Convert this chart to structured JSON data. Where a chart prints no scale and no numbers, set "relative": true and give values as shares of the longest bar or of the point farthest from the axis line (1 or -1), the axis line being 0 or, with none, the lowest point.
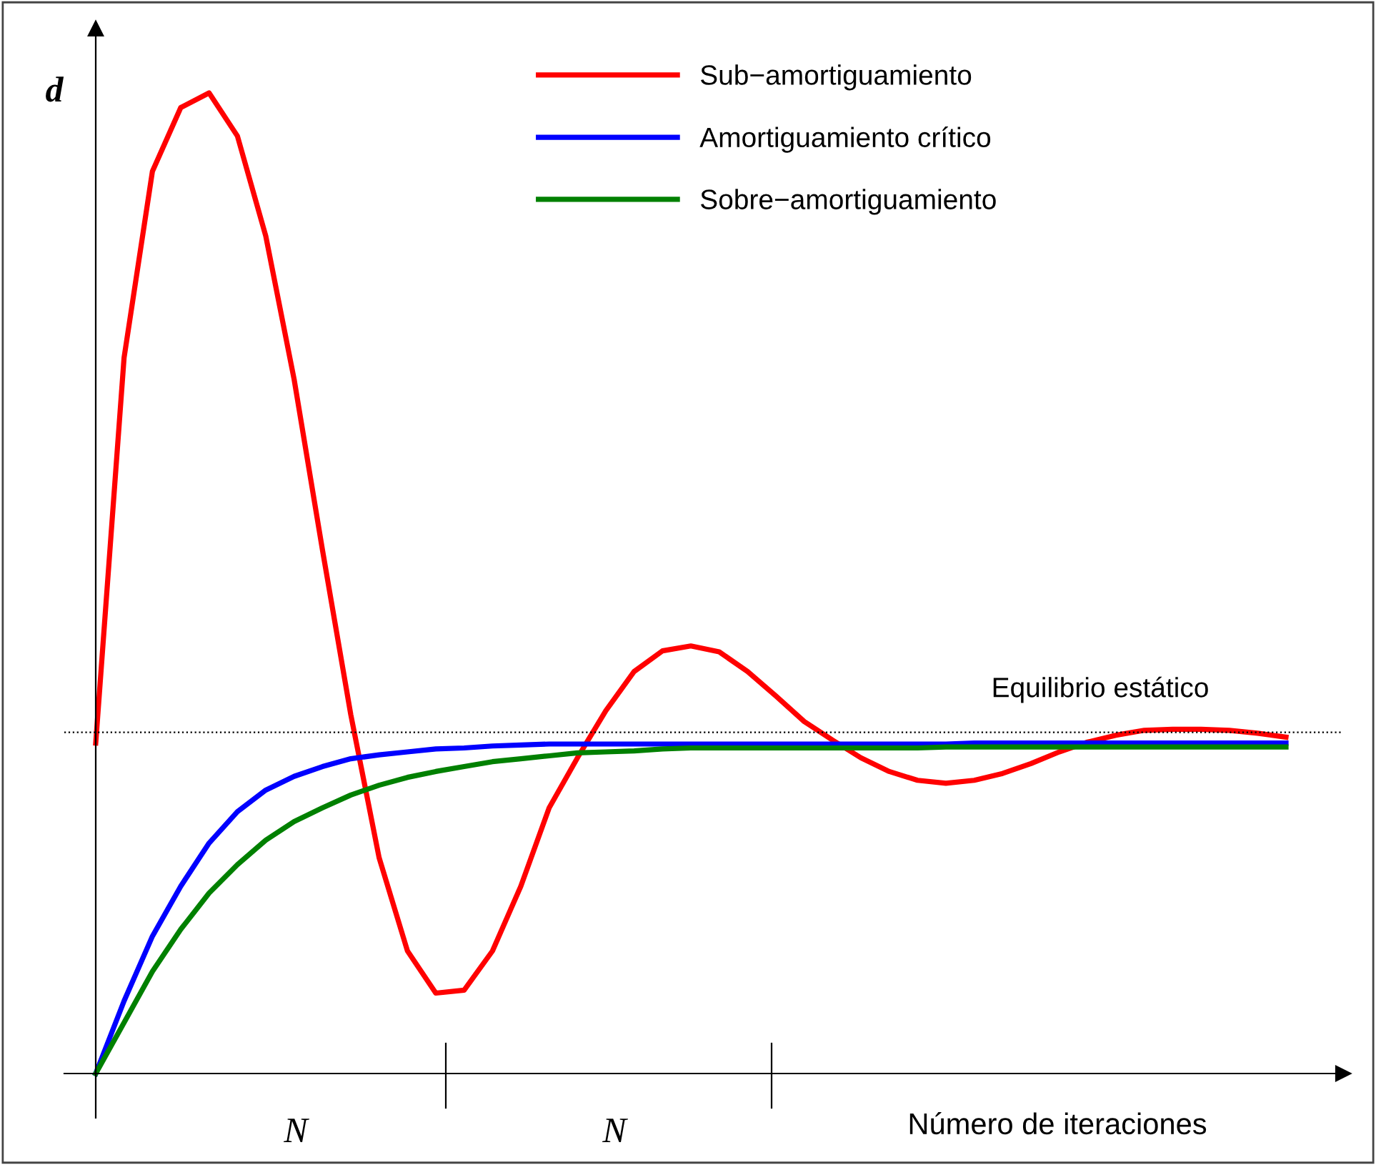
{
  "chart_data": {
    "type": "line",
    "relative": true,
    "ylabel": "d",
    "xlabel": "Número de iteraciones",
    "legend": "top",
    "marker": "none",
    "line_style": "solid",
    "tick_labels": false,
    "categories": [
      null,
      null,
      null,
      null,
      null,
      null,
      null,
      null,
      null,
      null,
      null,
      null,
      null,
      null,
      null,
      null,
      null,
      null,
      null,
      null,
      null,
      null,
      null,
      null,
      null,
      null,
      null,
      null,
      null,
      null,
      null,
      null,
      null,
      null,
      null,
      null,
      null,
      null,
      null,
      null,
      null,
      null,
      null
    ],
    "series": [
      {
        "name": "Sub−amortiguamiento",
        "color": "#ff0000",
        "values": [
          0.337,
          0.73,
          0.92,
          0.985,
          1.0,
          0.956,
          0.854,
          0.708,
          0.534,
          0.366,
          0.22,
          0.125,
          0.082,
          0.085,
          0.125,
          0.191,
          0.271,
          0.322,
          0.37,
          0.41,
          0.431,
          0.436,
          0.43,
          0.41,
          0.385,
          0.359,
          0.34,
          0.322,
          0.308,
          0.299,
          0.296,
          0.299,
          0.306,
          0.316,
          0.328,
          0.338,
          0.345,
          0.35,
          0.351,
          0.351,
          0.35,
          0.347,
          0.343
        ]
      },
      {
        "name": "Amortiguamiento crítico",
        "color": "#0000ff",
        "values": [
          0,
          0.074,
          0.14,
          0.191,
          0.235,
          0.267,
          0.289,
          0.303,
          0.313,
          0.321,
          0.325,
          0.328,
          0.331,
          0.332,
          0.334,
          0.335,
          0.336,
          0.336,
          0.336,
          0.336,
          0.336,
          0.336,
          0.336,
          0.336,
          0.336,
          0.336,
          0.336,
          0.336,
          0.336,
          0.336,
          0.336,
          0.337,
          0.337,
          0.337,
          0.337,
          0.337,
          0.337,
          0.337,
          0.337,
          0.337,
          0.337,
          0.337,
          0.337
        ]
      },
      {
        "name": "Sobre−amortiguamiento",
        "color": "#008000",
        "values": [
          0,
          0.052,
          0.104,
          0.147,
          0.184,
          0.213,
          0.238,
          0.257,
          0.271,
          0.284,
          0.294,
          0.302,
          0.308,
          0.313,
          0.318,
          0.321,
          0.324,
          0.327,
          0.328,
          0.329,
          0.331,
          0.332,
          0.332,
          0.332,
          0.332,
          0.332,
          0.332,
          0.332,
          0.332,
          0.332,
          0.333,
          0.333,
          0.333,
          0.333,
          0.333,
          0.333,
          0.333,
          0.333,
          0.333,
          0.333,
          0.333,
          0.333,
          0.333
        ]
      }
    ],
    "ref_lines": [
      {
        "axis": "y",
        "value": 0.348,
        "label": "Equilibrio estático",
        "color": "#000000",
        "line_style": "dotted"
      }
    ],
    "annotations": [
      "N",
      "N"
    ]
  }
}
